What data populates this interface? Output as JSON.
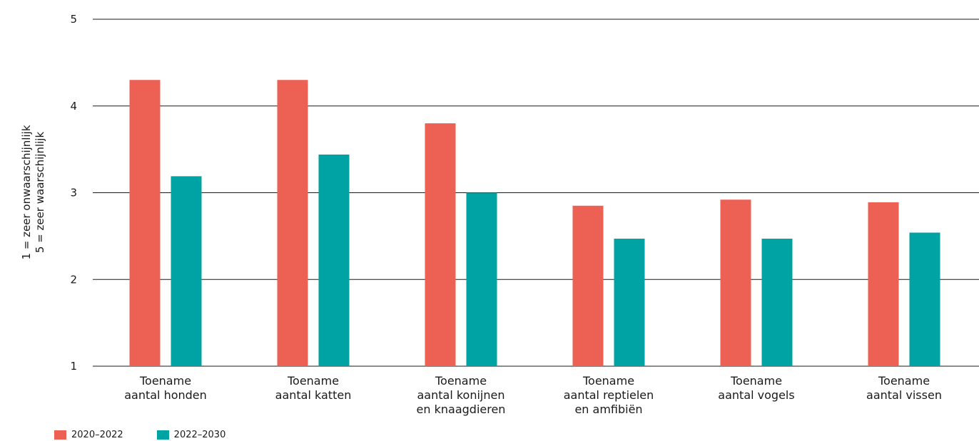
{
  "chart_data": {
    "type": "bar",
    "title": "",
    "ylabel": [
      "1 = zeer onwaarschijnlijk",
      "5 = zeer waarschijnlijk"
    ],
    "ylim": [
      1,
      5
    ],
    "yticks": [
      1,
      2,
      3,
      4,
      5
    ],
    "grid": true,
    "legend_position": "bottom-left",
    "categories": [
      [
        "Toename",
        "aantal honden"
      ],
      [
        "Toename",
        "aantal katten"
      ],
      [
        "Toename",
        "aantal konijnen",
        "en knaagdieren"
      ],
      [
        "Toename",
        "aantal reptielen",
        "en amfibiën"
      ],
      [
        "Toename",
        "aantal vogels"
      ],
      [
        "Toename",
        "aantal vissen"
      ]
    ],
    "series": [
      {
        "name": "2020–2022",
        "color": "#ed6054",
        "values": [
          4.3,
          4.3,
          3.8,
          2.85,
          2.92,
          2.89
        ]
      },
      {
        "name": "2022–2030",
        "color": "#00a3a3",
        "values": [
          3.19,
          3.44,
          3.0,
          2.47,
          2.47,
          2.54
        ]
      }
    ]
  }
}
